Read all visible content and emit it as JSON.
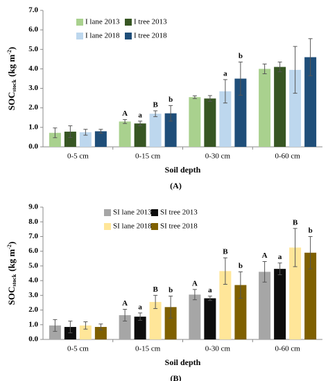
{
  "chart_data": [
    {
      "type": "bar",
      "label": "(A)",
      "xlabel": "Soil depth",
      "ylabel": [
        "SOC",
        "stock",
        "(kg m",
        "-2",
        ")"
      ],
      "categories": [
        "0-5 cm",
        "0-15 cm",
        "0-30 cm",
        "0-60 cm"
      ],
      "ylim": [
        0,
        7
      ],
      "yticks": [
        {
          "value": 0,
          "label": "0.0"
        },
        {
          "value": 1,
          "label": "1.0"
        },
        {
          "value": 2,
          "label": "2.0"
        },
        {
          "value": 3,
          "label": "3.0"
        },
        {
          "value": 4,
          "label": "4.0"
        },
        {
          "value": 5,
          "label": "5.0"
        },
        {
          "value": 6,
          "label": "6.0"
        },
        {
          "value": 7,
          "label": "7.0"
        }
      ],
      "legend": "upper left",
      "series": [
        {
          "name": "I lane 2013",
          "color": "#a9d18e",
          "values": [
            0.72,
            1.3,
            2.55,
            4.0
          ],
          "errors": [
            0.25,
            0.1,
            0.07,
            0.25
          ],
          "letters": [
            null,
            "A",
            null,
            null
          ]
        },
        {
          "name": "I tree 2013",
          "color": "#375623",
          "values": [
            0.78,
            1.2,
            2.48,
            4.1
          ],
          "errors": [
            0.3,
            0.12,
            0.15,
            0.25
          ],
          "letters": [
            null,
            "a",
            null,
            null
          ]
        },
        {
          "name": "I lane 2018",
          "color": "#bdd7ee",
          "values": [
            0.75,
            1.7,
            2.85,
            3.95
          ],
          "errors": [
            0.15,
            0.15,
            0.6,
            1.2
          ],
          "letters": [
            null,
            "B",
            "a",
            null
          ]
        },
        {
          "name": "I tree 2018",
          "color": "#1f4e79",
          "values": [
            0.8,
            1.72,
            3.5,
            4.6
          ],
          "errors": [
            0.1,
            0.4,
            0.85,
            0.95
          ],
          "letters": [
            null,
            "b",
            "b",
            null
          ]
        }
      ]
    },
    {
      "type": "bar",
      "label": "(B)",
      "xlabel": "Soil depth",
      "ylabel": [
        "SOC",
        "stock",
        "(kg m",
        "-2",
        ")"
      ],
      "categories": [
        "0-5 cm",
        "0-15 cm",
        "0-30 cm",
        "0-60 cm"
      ],
      "ylim": [
        0,
        9
      ],
      "yticks": [
        {
          "value": 0,
          "label": "0.0"
        },
        {
          "value": 1,
          "label": "1.0"
        },
        {
          "value": 2,
          "label": "2.0"
        },
        {
          "value": 3,
          "label": "3.0"
        },
        {
          "value": 4,
          "label": "4.0"
        },
        {
          "value": 5,
          "label": "5.0"
        },
        {
          "value": 6,
          "label": "6.0"
        },
        {
          "value": 7,
          "label": "7.0"
        },
        {
          "value": 8,
          "label": "8.0"
        },
        {
          "value": 9,
          "label": "9.0"
        }
      ],
      "legend": "upper left",
      "series": [
        {
          "name": "SI lane 2013",
          "color": "#a6a6a6",
          "values": [
            0.95,
            1.65,
            3.05,
            4.6
          ],
          "errors": [
            0.4,
            0.4,
            0.35,
            0.7
          ],
          "letters": [
            null,
            "A",
            "A",
            "A"
          ]
        },
        {
          "name": "SI tree 2013",
          "color": "#0d0d0d",
          "values": [
            0.85,
            1.55,
            2.8,
            4.8
          ],
          "errors": [
            0.4,
            0.25,
            0.15,
            0.4
          ],
          "letters": [
            null,
            "a",
            "a",
            "a"
          ]
        },
        {
          "name": "SI lane 2018",
          "color": "#ffe699",
          "values": [
            0.95,
            2.55,
            4.65,
            6.25
          ],
          "errors": [
            0.25,
            0.45,
            0.9,
            1.3
          ],
          "letters": [
            null,
            "B",
            "B",
            "B"
          ]
        },
        {
          "name": "SI tree 2018",
          "color": "#7f6000",
          "values": [
            0.85,
            2.2,
            3.7,
            5.9
          ],
          "errors": [
            0.2,
            0.75,
            0.9,
            1.1
          ],
          "letters": [
            null,
            "b",
            "b",
            "b"
          ]
        }
      ]
    }
  ]
}
